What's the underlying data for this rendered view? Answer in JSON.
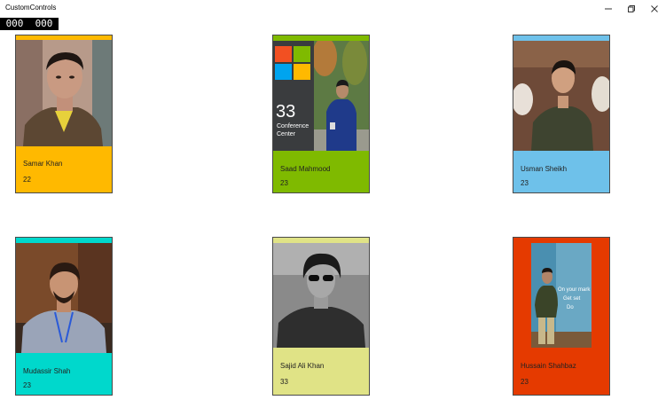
{
  "window": {
    "title": "CustomControls",
    "buttons": {
      "minimize": "minimize-icon",
      "restore": "restore-icon",
      "close": "close-icon"
    }
  },
  "counter": {
    "left": "000",
    "right": "000"
  },
  "cards": [
    {
      "name": "Samar Khan",
      "age": "22",
      "color": "#ffb900",
      "icon": "person-photo"
    },
    {
      "name": "Saad Mahmood",
      "age": "23",
      "color": "#7fba00",
      "icon": "person-photo",
      "sign": {
        "number": "33",
        "line1": "Conference",
        "line2": "Center"
      }
    },
    {
      "name": "Usman Sheikh",
      "age": "23",
      "color": "#6ec1ea",
      "icon": "person-photo"
    },
    {
      "name": "Mudassir Shah",
      "age": "23",
      "color": "#00d8cc",
      "icon": "person-photo"
    },
    {
      "name": "Sajid Ali Khan",
      "age": "33",
      "color": "#e0e386",
      "icon": "person-photo"
    },
    {
      "name": "Hussain Shahbaz",
      "age": "23",
      "color": "#e53a00",
      "icon": "person-photo",
      "banner": {
        "line1": "On your mark",
        "line2": "Get set",
        "line3": "Do"
      }
    }
  ]
}
